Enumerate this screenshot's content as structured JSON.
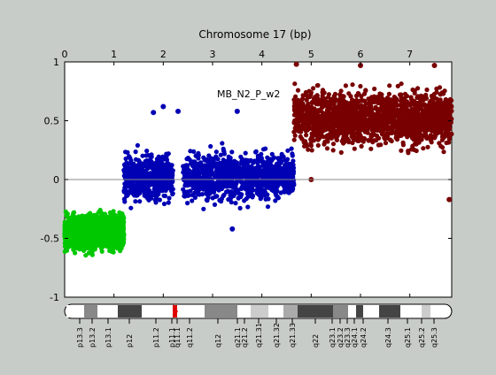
{
  "chart_data": {
    "type": "scatter",
    "title": "Chromosome 17 (bp)",
    "annotation": "MB_N2_P_w2",
    "xlim": [
      0,
      7.85
    ],
    "ylim": [
      -1,
      1
    ],
    "x_axis_position": "top",
    "x_ticks": [
      0,
      1,
      2,
      3,
      4,
      5,
      6,
      7
    ],
    "y_ticks": [
      -1,
      -0.5,
      0,
      0.5,
      1
    ],
    "y_tick_labels": [
      "-1",
      "-0.5",
      "0",
      "0.5",
      "1"
    ],
    "zero_line": true,
    "grid": false,
    "legend": "none",
    "series": [
      {
        "color": "#00c800",
        "points_approx": [
          [
            0.0,
            -0.58
          ],
          [
            0.1,
            -0.42
          ],
          [
            0.2,
            -0.5
          ],
          [
            0.3,
            -0.46
          ],
          [
            0.4,
            -0.38
          ],
          [
            0.5,
            -0.52
          ],
          [
            0.6,
            -0.44
          ],
          [
            0.7,
            -0.48
          ],
          [
            0.8,
            -0.4
          ],
          [
            0.9,
            -0.55
          ],
          [
            1.0,
            -0.47
          ],
          [
            1.1,
            -0.43
          ],
          [
            1.18,
            -0.5
          ]
        ],
        "x_range": [
          0.0,
          1.2
        ],
        "y_center": -0.45,
        "y_spread": [
          -0.65,
          -0.24
        ]
      },
      {
        "color": "#0000b4",
        "points_approx": [
          [
            1.2,
            0.0
          ],
          [
            1.4,
            0.05
          ],
          [
            1.6,
            0.02
          ],
          [
            1.8,
            -0.05
          ],
          [
            2.0,
            0.08
          ],
          [
            2.2,
            0.0
          ],
          [
            2.5,
            0.03
          ],
          [
            2.8,
            -0.02
          ],
          [
            3.1,
            0.05
          ],
          [
            3.5,
            0.0
          ],
          [
            3.9,
            0.04
          ],
          [
            4.3,
            -0.03
          ],
          [
            4.6,
            0.02
          ]
        ],
        "x_range": [
          1.2,
          4.65
        ],
        "gap": [
          2.2,
          2.4
        ],
        "y_center": 0.02,
        "y_spread": [
          -0.25,
          0.32
        ],
        "outliers": [
          [
            2.3,
            0.58
          ],
          [
            2.0,
            0.62
          ],
          [
            1.8,
            0.57
          ],
          [
            3.5,
            0.58
          ],
          [
            3.4,
            -0.42
          ]
        ]
      },
      {
        "color": "#780000",
        "points_approx": [
          [
            4.65,
            0.45
          ],
          [
            5.0,
            0.55
          ],
          [
            5.5,
            0.52
          ],
          [
            6.0,
            0.6
          ],
          [
            6.5,
            0.5
          ],
          [
            7.0,
            0.55
          ],
          [
            7.5,
            0.48
          ],
          [
            7.85,
            0.52
          ]
        ],
        "x_range": [
          4.65,
          7.85
        ],
        "y_center": 0.52,
        "y_spread": [
          0.2,
          0.85
        ],
        "outliers": [
          [
            4.7,
            0.98
          ],
          [
            6.0,
            0.97
          ],
          [
            7.5,
            0.97
          ],
          [
            5.0,
            0.0
          ],
          [
            7.8,
            -0.17
          ]
        ]
      }
    ]
  },
  "ideogram": {
    "band_labels": [
      "p13.3",
      "p13.2",
      "p13.1",
      "p12",
      "p11.2",
      "p11.1",
      "q11.1",
      "q11.2",
      "q12",
      "q21.1",
      "q21.2",
      "q21.31",
      "q21.32",
      "q21.33",
      "q22",
      "q23.1",
      "q23.2",
      "q23.3",
      "q24.1",
      "q24.2",
      "q24.3",
      "q25.1",
      "q25.2",
      "q25.3"
    ]
  }
}
